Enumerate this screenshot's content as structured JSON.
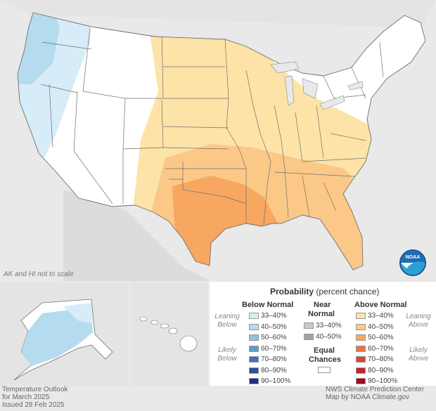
{
  "note": "AK and HI not to scale",
  "legend": {
    "title": "Probability",
    "title_note": "(percent chance)",
    "below": {
      "header": "Below Normal",
      "side_top": "Leaning Below",
      "side_bottom": "Likely Below",
      "levels": [
        "33–40%",
        "40–50%",
        "50–60%",
        "60–70%",
        "70–80%",
        "80–90%",
        "90–100%"
      ],
      "colors": [
        "#d6ecf8",
        "#b5dbee",
        "#8cc3e3",
        "#5e9ccd",
        "#3f73b8",
        "#2e4d9c",
        "#28288a"
      ]
    },
    "near": {
      "header_1": "Near",
      "header_2": "Normal",
      "levels": [
        "33–40%",
        "40–50%"
      ],
      "colors": [
        "#c9c9c9",
        "#a3a3a3"
      ],
      "equal_1": "Equal",
      "equal_2": "Chances",
      "equal_color": "#ffffff"
    },
    "above": {
      "header": "Above Normal",
      "side_top": "Leaning Above",
      "side_bottom": "Likely Above",
      "levels": [
        "33–40%",
        "40–50%",
        "50–60%",
        "60–70%",
        "70–80%",
        "80–90%",
        "90–100%"
      ],
      "colors": [
        "#fde3a7",
        "#fbc887",
        "#f8a760",
        "#ef7241",
        "#dc4134",
        "#c02626",
        "#9c0c1c"
      ]
    }
  },
  "footer": {
    "left_1": "Temperature Outlook",
    "left_2": "for March 2025",
    "left_3": "Issued 28 Feb 2025",
    "right_1": "NWS Climate Prediction Center",
    "right_2": "Map by NOAA Climate.gov"
  },
  "logo": {
    "text": "NOAA"
  }
}
